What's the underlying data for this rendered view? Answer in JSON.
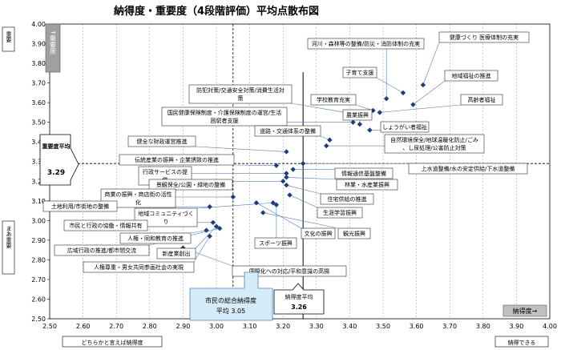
{
  "chart_data": {
    "type": "scatter",
    "title": "納得度・重要度（4段階評価）平均点散布図",
    "xlim": [
      2.5,
      4.0
    ],
    "ylim": [
      2.5,
      4.0
    ],
    "x_ticks": [
      "2.50",
      "2.60",
      "2.70",
      "2.80",
      "2.90",
      "3.00",
      "3.10",
      "3.20",
      "3.30",
      "3.40",
      "3.50",
      "3.60",
      "3.70",
      "3.80",
      "3.90",
      "4.00"
    ],
    "y_ticks": [
      "2.50",
      "2.60",
      "2.70",
      "2.80",
      "2.90",
      "3.00",
      "3.10",
      "3.20",
      "3.30",
      "3.40",
      "3.50",
      "3.60",
      "3.70",
      "3.80",
      "3.90",
      "4.00"
    ],
    "grid": "vertical dashed",
    "x_axis_label": "納得度→",
    "y_axis_label": "↑重要度",
    "x_low_label": "どちらかと言えば納得度",
    "x_high_label": "納得できる",
    "y_high_label": "重要",
    "y_low_label": "まあ重要",
    "mean_y_box": {
      "line1": "重要度平均",
      "value": "3.29"
    },
    "mean_x_box": {
      "line1": "市民の総合納得度",
      "line2": "平均 3.05"
    },
    "mean_x2_box": {
      "line1": "納得度平均",
      "value": "3.26"
    },
    "mean_lines": {
      "y": 3.29,
      "x1": 3.05,
      "x2": 3.26
    },
    "points": [
      {
        "label": "河川・森林等の整備/防災・消防体制の充実",
        "x": 3.51,
        "y": 3.62
      },
      {
        "label": "健康づくり 医療体制の充実",
        "x": 3.62,
        "y": 3.69
      },
      {
        "label": "子育て支援",
        "x": 3.56,
        "y": 3.65
      },
      {
        "label": "地域福祉の推進",
        "x": 3.59,
        "y": 3.59
      },
      {
        "label": "防犯対策/交通安全対策/消費生活対策",
        "x": 3.42,
        "y": 3.54
      },
      {
        "label": "学校教育充実",
        "x": 3.47,
        "y": 3.56
      },
      {
        "label": "高齢者福祉",
        "x": 3.49,
        "y": 3.55
      },
      {
        "label": "国民健康保険制度・介護保険制度の運営/生活困窮者支援",
        "x": 3.41,
        "y": 3.5
      },
      {
        "label": "農業振興",
        "x": 3.43,
        "y": 3.49
      },
      {
        "label": "しょうがい者福祉",
        "x": 3.46,
        "y": 3.46
      },
      {
        "label": "道路・交通体系の整備",
        "x": 3.34,
        "y": 3.41
      },
      {
        "label": "自然環境保全/地球温暖化防止/ごみ、し尿処理/公害防止対策",
        "x": 3.33,
        "y": 3.38
      },
      {
        "label": "健全な財政運営推進",
        "x": 3.21,
        "y": 3.35
      },
      {
        "label": "上水道整備/水の安定供給/下水道整備",
        "x": 3.26,
        "y": 3.29
      },
      {
        "label": "伝統産業の振興・企業誘致の推進",
        "x": 3.18,
        "y": 3.28
      },
      {
        "label": "行政サービスの提供",
        "x": 3.21,
        "y": 3.24
      },
      {
        "label": "情報通信基盤整備",
        "x": 3.23,
        "y": 3.26
      },
      {
        "label": "林業・水産業振興",
        "x": 3.21,
        "y": 3.22
      },
      {
        "label": "景観保全/公園・緑地の整備",
        "x": 3.2,
        "y": 3.2
      },
      {
        "label": "住宅供給の推進",
        "x": 3.21,
        "y": 3.18
      },
      {
        "label": "商業の振興・商店街の活性化",
        "x": 3.05,
        "y": 3.12
      },
      {
        "label": "生涯学習振興",
        "x": 3.22,
        "y": 3.13
      },
      {
        "label": "土地利用/市街地の整備",
        "x": 2.98,
        "y": 3.07
      },
      {
        "label": "地域コミュニティづくり",
        "x": 3.17,
        "y": 3.09
      },
      {
        "label": "スポーツ振興",
        "x": 3.18,
        "y": 3.08
      },
      {
        "label": "市民と行政の協働・情報共有",
        "x": 2.99,
        "y": 2.99
      },
      {
        "label": "文化の振興",
        "x": 3.12,
        "y": 3.09
      },
      {
        "label": "観光振興",
        "x": 3.14,
        "y": 3.04
      },
      {
        "label": "人権・同和教育の推進",
        "x": 2.97,
        "y": 2.95
      },
      {
        "label": "広域行政の推進/都市間交流",
        "x": 3.01,
        "y": 2.96
      },
      {
        "label": "新産業創出",
        "x": 3.0,
        "y": 2.97
      },
      {
        "label": "人権尊重・男女共同参画社会の実現",
        "x": 2.98,
        "y": 2.92
      },
      {
        "label": "国際化への対応/平和意識の高揚",
        "x": 2.9,
        "y": 2.86
      }
    ]
  }
}
